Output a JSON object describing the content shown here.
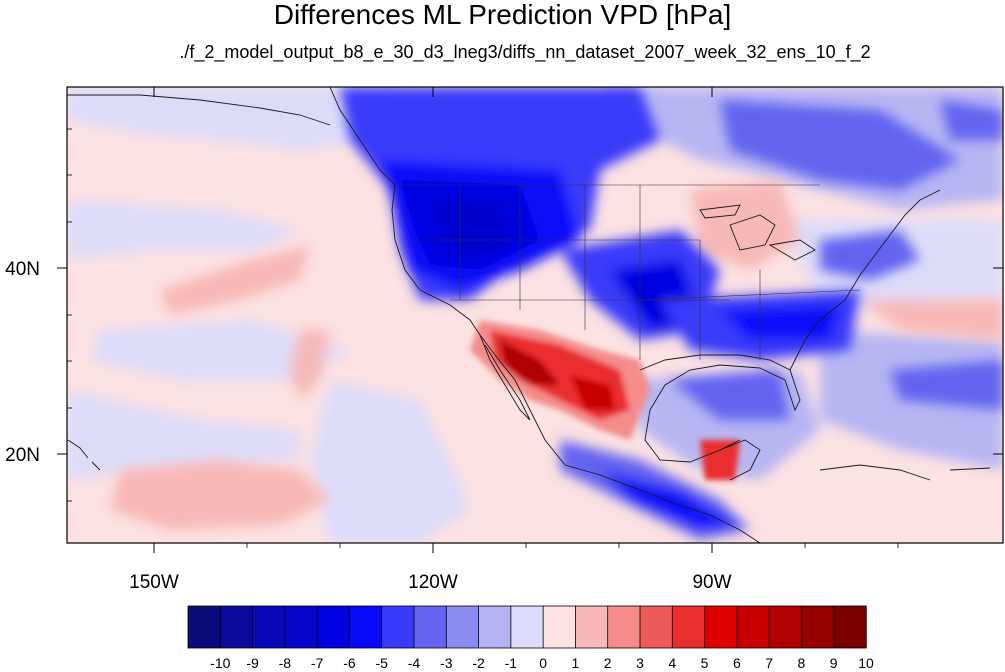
{
  "title": "Differences ML Prediction VPD [hPa]",
  "subtitle": "./f_2_model_output_b8_e_30_d3_lneg3/diffs_nn_dataset_2007_week_32_ens_10_f_2",
  "axes": {
    "lon_ticks": [
      "150W",
      "120W",
      "90W"
    ],
    "lat_ticks": [
      "40N",
      "20N"
    ]
  },
  "colorbar": {
    "labels": [
      "-10",
      "-9",
      "-8",
      "-7",
      "-6",
      "-5",
      "-4",
      "-3",
      "-2",
      "-1",
      "0",
      "1",
      "2",
      "3",
      "4",
      "5",
      "6",
      "7",
      "8",
      "9",
      "10"
    ],
    "colors": [
      "#0b0b7a",
      "#0a0a9c",
      "#0808b8",
      "#0505cc",
      "#0000e0",
      "#0a0afa",
      "#3a3afa",
      "#6464f0",
      "#8c8cf0",
      "#b4b4f4",
      "#dcdcfa",
      "#fce2e2",
      "#f8b8b8",
      "#f48c8c",
      "#ef5a5a",
      "#ea2e2e",
      "#e00000",
      "#c80000",
      "#b00000",
      "#980000",
      "#7a0000"
    ]
  }
}
